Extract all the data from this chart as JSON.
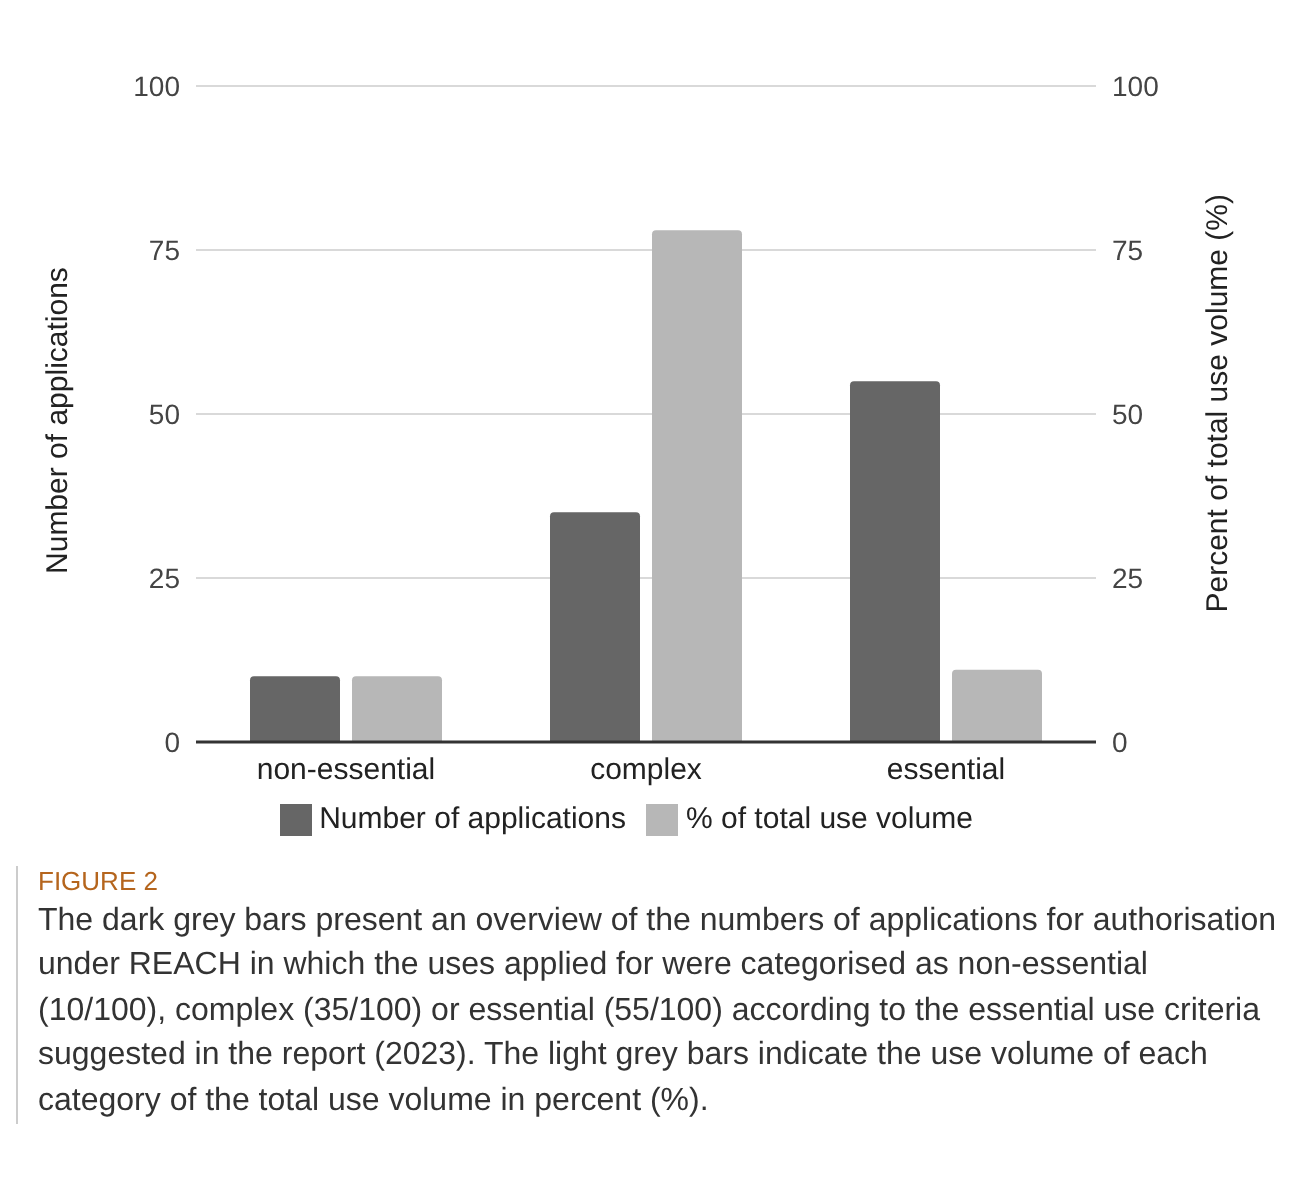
{
  "chart_data": {
    "type": "bar",
    "categories": [
      "non-essential",
      "complex",
      "essential"
    ],
    "series": [
      {
        "name": "Number of applications",
        "color": "#666666",
        "values": [
          10,
          35,
          55
        ]
      },
      {
        "name": "% of total use volume",
        "color": "#b7b7b7",
        "values": [
          10,
          78,
          11
        ],
        "axis": "y2"
      }
    ],
    "ylabel": "Number of applications",
    "y2label": "Percent of total use volume (%)",
    "ylim": [
      0,
      100
    ],
    "yticks": [
      0,
      25,
      50,
      75,
      100
    ],
    "y2lim": [
      0,
      100
    ],
    "y2ticks": [
      0,
      25,
      50,
      75,
      100
    ],
    "grid": "y",
    "legend": "bottom",
    "annotations": [
      "FIGURE 2",
      "The dark grey bars present an overview of the numbers of applications for authorisation under REACH in which the uses applied for were categorised as non-essential (10/100), complex (35/100) or essential (55/100) according to the essential use criteria suggested in the report (2023). The light grey bars indicate the use volume of each category of the total use volume in percent (%)."
    ]
  }
}
